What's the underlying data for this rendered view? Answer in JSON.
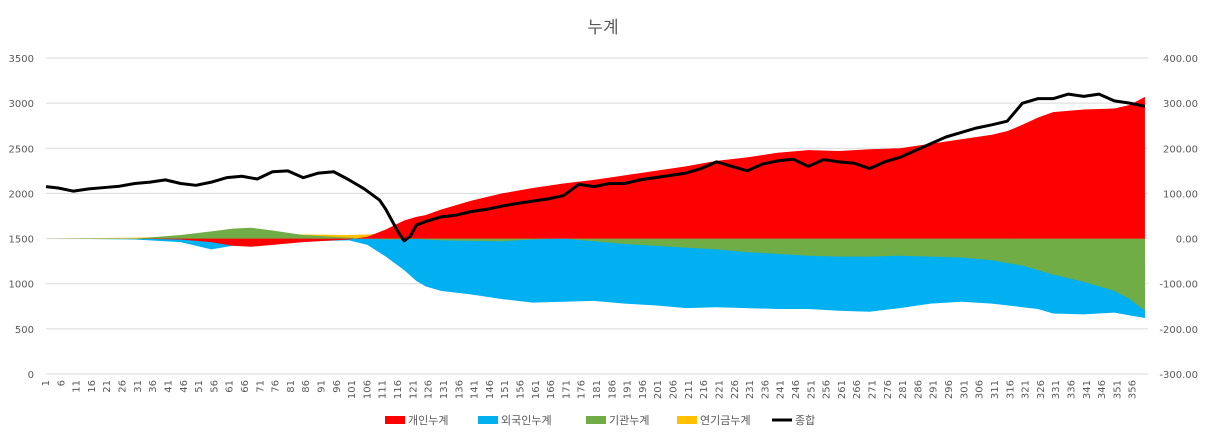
{
  "chart_data": {
    "type": "area",
    "title": "누계",
    "xlabel": "",
    "ylabel": "",
    "x_range": [
      1,
      361
    ],
    "x_tick_start": 1,
    "x_tick_step": 5,
    "x_tick_labels": [
      "1",
      "6",
      "11",
      "16",
      "21",
      "26",
      "31",
      "36",
      "41",
      "46",
      "51",
      "56",
      "61",
      "66",
      "71",
      "76",
      "81",
      "86",
      "91",
      "96",
      "101",
      "106",
      "111",
      "116",
      "121",
      "126",
      "131",
      "136",
      "141",
      "146",
      "151",
      "156",
      "161",
      "166",
      "171",
      "176",
      "181",
      "186",
      "191",
      "196",
      "201",
      "206",
      "211",
      "216",
      "221",
      "226",
      "231",
      "236",
      "241",
      "246",
      "251",
      "256",
      "261",
      "266",
      "271",
      "276",
      "281",
      "286",
      "291",
      "296",
      "301",
      "306",
      "311",
      "316",
      "321",
      "326",
      "331",
      "336",
      "341",
      "346",
      "351",
      "356"
    ],
    "y_left": {
      "min": 0,
      "max": 3500,
      "ticks": [
        0,
        500,
        1000,
        1500,
        2000,
        2500,
        3000,
        3500
      ]
    },
    "y_right": {
      "min": -300,
      "max": 400,
      "ticks": [
        "-300.00",
        "-200.00",
        "-100.00",
        "0.00",
        "100.00",
        "200.00",
        "300.00",
        "400.00"
      ],
      "values": [
        -300,
        -200,
        -100,
        0,
        100,
        200,
        300,
        400
      ]
    },
    "area_baseline": 1500,
    "grid": "horizontal",
    "legend_position": "bottom",
    "series": [
      {
        "name": "개인누계",
        "color": "#ff0000",
        "axis": "left",
        "x": [
          1,
          30,
          45,
          55,
          62,
          68,
          75,
          85,
          100,
          106,
          112,
          118,
          122,
          125,
          130,
          140,
          150,
          160,
          170,
          180,
          190,
          200,
          210,
          220,
          230,
          240,
          250,
          260,
          270,
          280,
          290,
          300,
          310,
          315,
          320,
          325,
          330,
          340,
          350,
          355,
          360
        ],
        "values": [
          1500,
          1500,
          1490,
          1460,
          1420,
          1410,
          1430,
          1460,
          1490,
          1520,
          1600,
          1700,
          1740,
          1760,
          1820,
          1920,
          2000,
          2060,
          2110,
          2150,
          2200,
          2250,
          2300,
          2360,
          2400,
          2450,
          2480,
          2470,
          2490,
          2500,
          2550,
          2600,
          2650,
          2690,
          2760,
          2840,
          2900,
          2930,
          2940,
          2980,
          3070
        ]
      },
      {
        "name": "외국인누계",
        "color": "#00b0f0",
        "axis": "left",
        "x": [
          1,
          30,
          45,
          55,
          62,
          68,
          75,
          85,
          100,
          106,
          112,
          118,
          122,
          125,
          130,
          140,
          150,
          160,
          170,
          180,
          190,
          200,
          210,
          220,
          230,
          240,
          250,
          260,
          270,
          280,
          290,
          300,
          310,
          315,
          320,
          325,
          330,
          340,
          350,
          355,
          360
        ],
        "values": [
          1500,
          1490,
          1460,
          1380,
          1420,
          1430,
          1460,
          1470,
          1480,
          1430,
          1300,
          1150,
          1030,
          970,
          920,
          880,
          830,
          790,
          800,
          810,
          780,
          760,
          730,
          740,
          730,
          720,
          720,
          700,
          690,
          730,
          780,
          800,
          780,
          760,
          740,
          720,
          670,
          660,
          680,
          650,
          620
        ]
      },
      {
        "name": "기관누계",
        "color": "#70ad47",
        "axis": "left",
        "x": [
          1,
          30,
          45,
          55,
          62,
          68,
          75,
          85,
          100,
          106,
          112,
          118,
          122,
          125,
          130,
          140,
          150,
          160,
          170,
          180,
          190,
          200,
          210,
          220,
          230,
          240,
          250,
          260,
          270,
          280,
          290,
          300,
          310,
          315,
          320,
          325,
          330,
          340,
          350,
          355,
          360
        ],
        "values": [
          1500,
          1500,
          1540,
          1580,
          1610,
          1620,
          1590,
          1540,
          1510,
          1500,
          1490,
          1490,
          1495,
          1490,
          1480,
          1475,
          1470,
          1490,
          1500,
          1470,
          1440,
          1420,
          1400,
          1380,
          1350,
          1330,
          1310,
          1300,
          1300,
          1310,
          1300,
          1290,
          1260,
          1230,
          1200,
          1150,
          1100,
          1020,
          920,
          830,
          700
        ]
      },
      {
        "name": "연기금누계",
        "color": "#ffc000",
        "axis": "left",
        "x": [
          1,
          30,
          45,
          55,
          62,
          68,
          75,
          85,
          100,
          106,
          112,
          118,
          122,
          125,
          130,
          140,
          150,
          160,
          170,
          180,
          190,
          200,
          210,
          220,
          230,
          240,
          250,
          260,
          270,
          280,
          290,
          300,
          310,
          315,
          320,
          325,
          330,
          340,
          350,
          355,
          360
        ],
        "values": [
          1500,
          1510,
          1520,
          1530,
          1540,
          1545,
          1550,
          1545,
          1540,
          1545,
          1560,
          1580,
          1600,
          1610,
          1630,
          1650,
          1670,
          1690,
          1700,
          1690,
          1680,
          1670,
          1660,
          1650,
          1640,
          1620,
          1600,
          1580,
          1560,
          1540,
          1530,
          1520,
          1510,
          1500,
          1480,
          1460,
          1430,
          1400,
          1360,
          1330,
          1300
        ]
      },
      {
        "name": "종합",
        "color": "#000000",
        "axis": "right",
        "line": true,
        "x": [
          1,
          5,
          10,
          15,
          20,
          25,
          30,
          35,
          40,
          45,
          50,
          55,
          60,
          65,
          70,
          75,
          80,
          85,
          90,
          95,
          100,
          105,
          110,
          112,
          114,
          116,
          118,
          120,
          122,
          124,
          126,
          130,
          135,
          140,
          145,
          150,
          155,
          160,
          165,
          170,
          175,
          180,
          185,
          190,
          195,
          200,
          205,
          210,
          215,
          220,
          225,
          230,
          235,
          240,
          245,
          250,
          255,
          260,
          265,
          270,
          275,
          280,
          285,
          290,
          295,
          300,
          305,
          310,
          315,
          320,
          325,
          330,
          335,
          340,
          345,
          350,
          355,
          360
        ],
        "values": [
          115,
          112,
          105,
          110,
          113,
          116,
          122,
          125,
          130,
          122,
          118,
          125,
          135,
          138,
          132,
          148,
          150,
          135,
          145,
          148,
          130,
          110,
          85,
          65,
          40,
          15,
          -5,
          5,
          30,
          35,
          40,
          48,
          52,
          60,
          65,
          72,
          78,
          83,
          88,
          95,
          120,
          115,
          122,
          122,
          130,
          135,
          140,
          145,
          155,
          170,
          160,
          150,
          165,
          172,
          176,
          160,
          175,
          170,
          167,
          155,
          170,
          180,
          195,
          210,
          225,
          235,
          245,
          252,
          260,
          300,
          310,
          310,
          320,
          315,
          320,
          305,
          300,
          293
        ]
      }
    ]
  }
}
